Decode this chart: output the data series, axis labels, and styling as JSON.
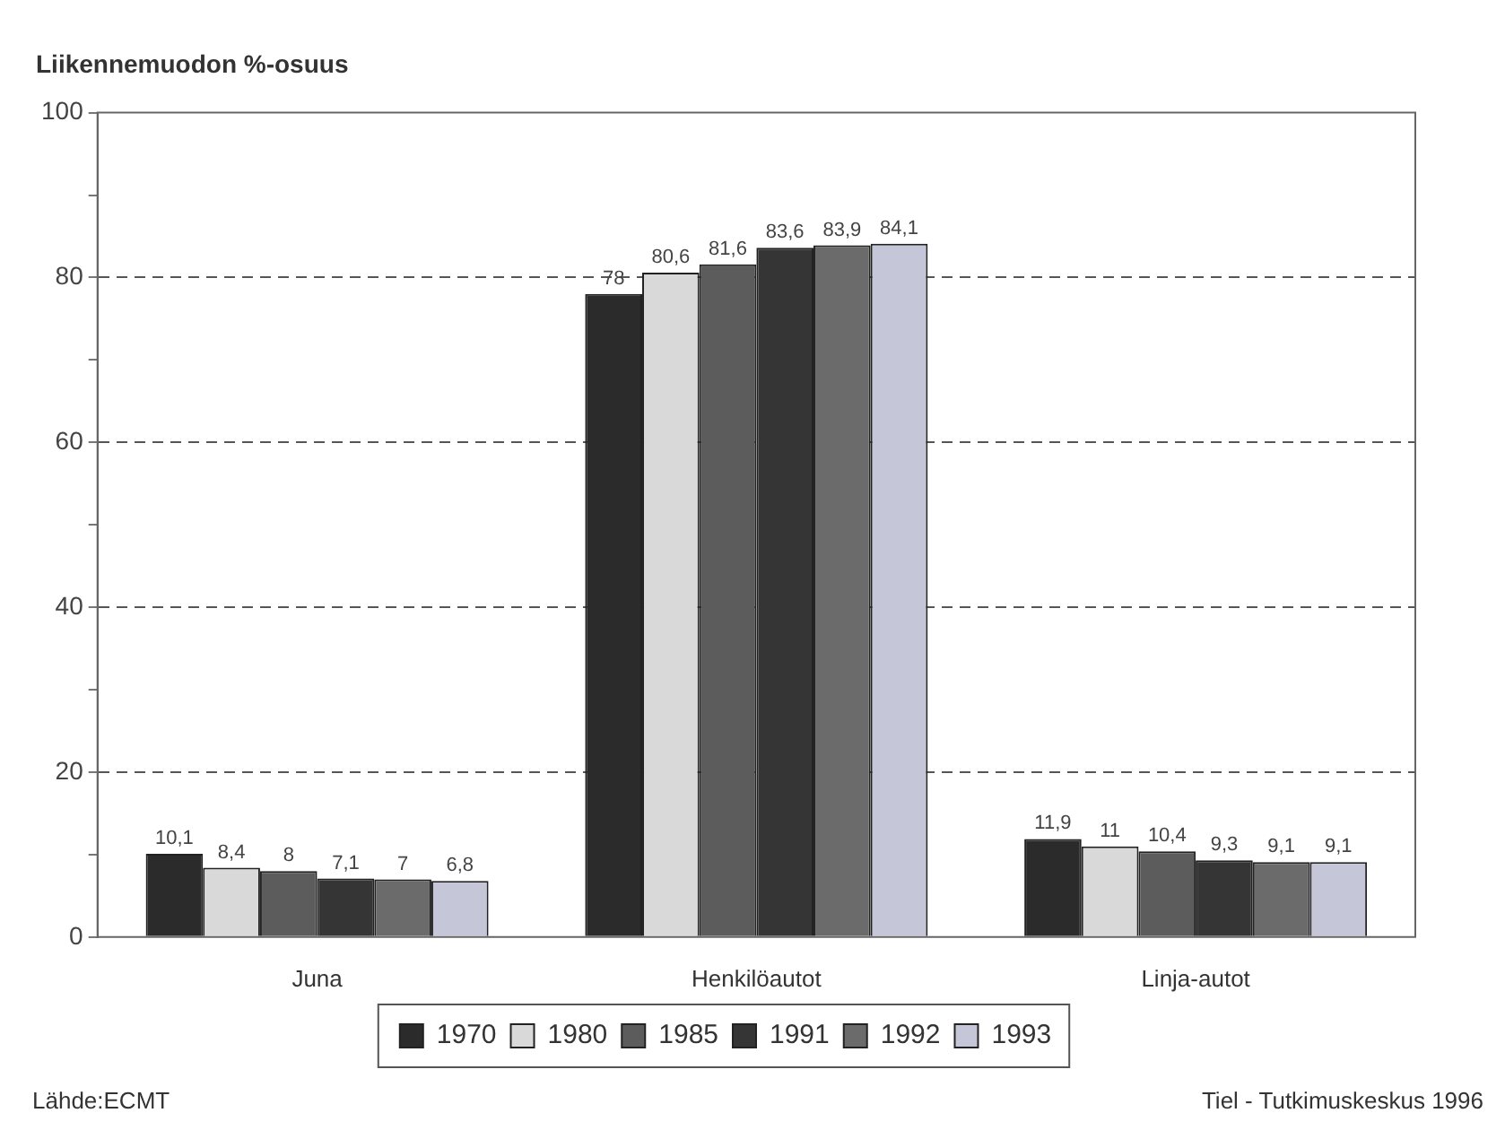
{
  "chart_data": {
    "type": "bar",
    "title": "Liikennemuodon %-osuus",
    "categories": [
      "Juna",
      "Henkilöautot",
      "Linja-autot"
    ],
    "series": [
      {
        "name": "1970",
        "color": "#2b2b2b",
        "values": [
          10.1,
          78,
          11.9
        ],
        "value_labels": [
          "10,1",
          "78",
          "11,9"
        ]
      },
      {
        "name": "1980",
        "color": "#d9d9d9",
        "values": [
          8.4,
          80.6,
          11
        ],
        "value_labels": [
          "8,4",
          "80,6",
          "11"
        ]
      },
      {
        "name": "1985",
        "color": "#5c5c5c",
        "values": [
          8,
          81.6,
          10.4
        ],
        "value_labels": [
          "8",
          "81,6",
          "10,4"
        ]
      },
      {
        "name": "1991",
        "color": "#353535",
        "values": [
          7.1,
          83.6,
          9.3
        ],
        "value_labels": [
          "7,1",
          "83,6",
          "9,3"
        ]
      },
      {
        "name": "1992",
        "color": "#6b6b6b",
        "values": [
          7,
          83.9,
          9.1
        ],
        "value_labels": [
          "7",
          "83,9",
          "9,1"
        ]
      },
      {
        "name": "1993",
        "color": "#c6c6d9",
        "values": [
          6.8,
          84.1,
          9.1
        ],
        "value_labels": [
          "6,8",
          "84,1",
          "9,1"
        ]
      }
    ],
    "ylim": [
      0,
      100
    ],
    "yticks": [
      0,
      {
        "value": 10,
        "label": null
      },
      20,
      {
        "value": 30,
        "label": null
      },
      40,
      {
        "value": 50,
        "label": null
      },
      60,
      {
        "value": 70,
        "label": null
      },
      80,
      {
        "value": 90,
        "label": null
      },
      100
    ],
    "grid": "y",
    "legend": "bottom",
    "annotations": [
      "Lähde:ECMT",
      "Tiel - Tutkimuskeskus 1996"
    ]
  }
}
